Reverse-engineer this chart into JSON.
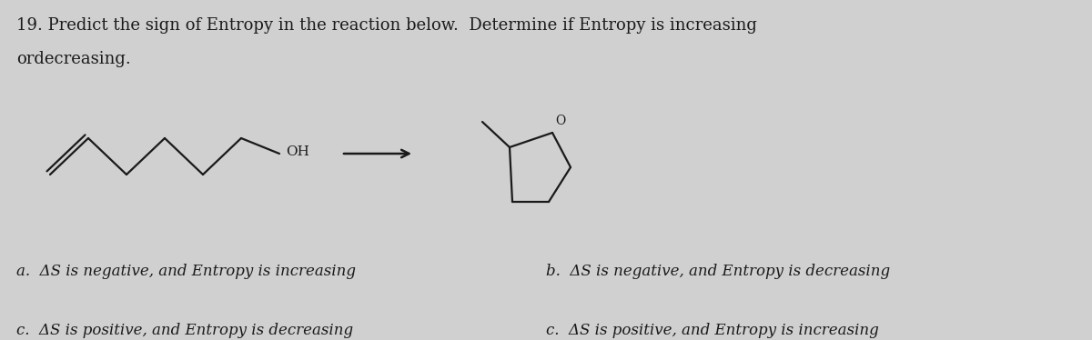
{
  "background_color": "#d0d0d0",
  "title_line1": "19. Predict the sign of Entropy in the reaction below.  Determine if Entropy is increasing",
  "title_line2": "ordecreasing.",
  "answer_a": "a.  ΔS is negative, and Entropy is increasing",
  "answer_b": "b.  ΔS is negative, and Entropy is decreasing",
  "answer_c1": "c.  ΔS is positive, and Entropy is decreasing",
  "answer_c2": "c.  ΔS is positive, and Entropy is increasing",
  "text_color": "#1a1a1a",
  "font_size_title": 13,
  "font_size_answers": 12,
  "fig_width": 12,
  "fig_height": 3.74,
  "chain_color": "#1a1a1a",
  "lw": 1.6
}
